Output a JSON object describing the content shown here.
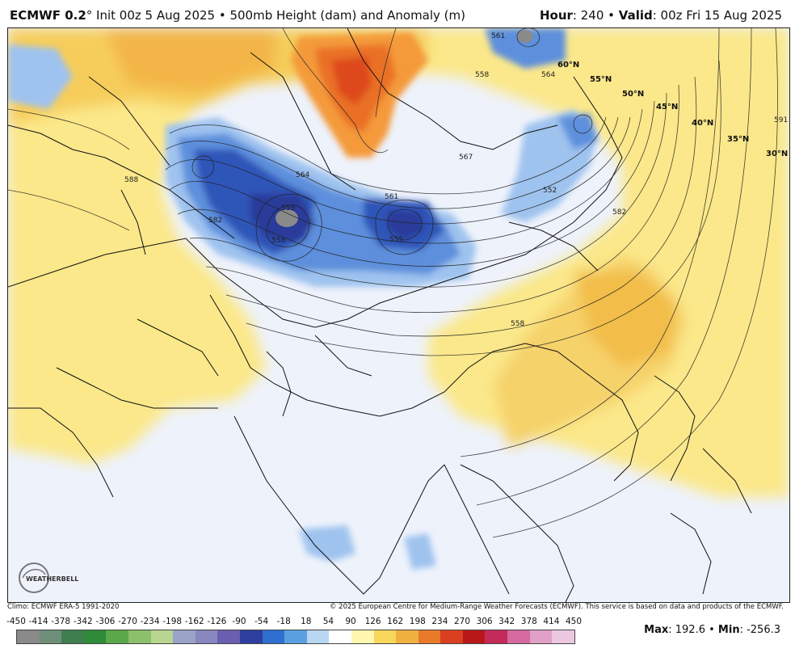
{
  "header": {
    "model": "ECMWF 0.2",
    "init": "° Init 00z 5 Aug 2025 • 500mb Height (dam) and Anomaly (m)",
    "hour_label": "Hour",
    "hour_value": ": 240 •",
    "valid_label": "Valid",
    "valid_value": ": 00z Fri 15 Aug 2025"
  },
  "map": {
    "latitude_labels": [
      "60°N",
      "55°N",
      "50°N",
      "45°N",
      "40°N",
      "35°N",
      "30°N"
    ],
    "contour_labels": [
      "555",
      "558",
      "561",
      "564",
      "567",
      "555",
      "558",
      "564",
      "552",
      "582",
      "588",
      "591",
      "558",
      "561",
      "582"
    ],
    "logo_text": "WEATHERBELL"
  },
  "credits": {
    "climo": "Climo: ECMWF ERA-5 1991-2020",
    "copyright": "© 2025 European Centre for Medium-Range Weather Forecasts (ECMWF). This service is based on data and products of the ECMWF."
  },
  "colorbar": {
    "labels": [
      "-450",
      "-414",
      "-378",
      "-342",
      "-306",
      "-270",
      "-234",
      "-198",
      "-162",
      "-126",
      "-90",
      "-54",
      "-18",
      "18",
      "54",
      "90",
      "126",
      "162",
      "198",
      "234",
      "270",
      "306",
      "342",
      "378",
      "414",
      "450"
    ],
    "colors": [
      "#8a8a8a",
      "#6f8f7a",
      "#3f7f4f",
      "#2f8a3a",
      "#5aa84a",
      "#8cc06a",
      "#b8d68f",
      "#9aa3c8",
      "#8a86c0",
      "#6a5fb0",
      "#2f3f9f",
      "#2f6fcf",
      "#5aa0e0",
      "#b9d6f2",
      "#ffffff",
      "#fff6b0",
      "#f7d65a",
      "#f0b040",
      "#e87a2a",
      "#d8401f",
      "#b81818",
      "#c42a5a",
      "#d46aa0",
      "#e0a0c8",
      "#ecc8e0"
    ]
  },
  "stats": {
    "max_label": "Max",
    "max_value": ": 192.6 •",
    "min_label": "Min",
    "min_value": ": -256.3"
  }
}
